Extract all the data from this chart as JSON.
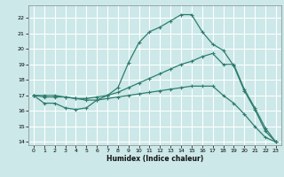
{
  "title": "",
  "xlabel": "Humidex (Indice chaleur)",
  "bg_color": "#cce8e8",
  "grid_color": "#ffffff",
  "line_color": "#2e7d6e",
  "xlim": [
    -0.5,
    23.5
  ],
  "ylim": [
    13.8,
    22.8
  ],
  "xticks": [
    0,
    1,
    2,
    3,
    4,
    5,
    6,
    7,
    8,
    9,
    10,
    11,
    12,
    13,
    14,
    15,
    16,
    17,
    18,
    19,
    20,
    21,
    22,
    23
  ],
  "yticks": [
    14,
    15,
    16,
    17,
    18,
    19,
    20,
    21,
    22
  ],
  "line1_x": [
    0,
    1,
    2,
    3,
    4,
    5,
    6,
    7,
    8,
    9,
    10,
    11,
    12,
    13,
    14,
    15,
    16,
    17,
    18,
    19,
    20,
    21,
    22,
    23
  ],
  "line1_y": [
    17,
    16.5,
    16.5,
    16.2,
    16.1,
    16.2,
    16.7,
    17.0,
    17.5,
    19.1,
    20.4,
    21.1,
    21.4,
    21.8,
    22.2,
    22.2,
    21.1,
    20.3,
    19.9,
    18.9,
    17.3,
    16.1,
    14.7,
    14.0
  ],
  "line2_x": [
    0,
    1,
    2,
    3,
    4,
    5,
    6,
    7,
    8,
    9,
    10,
    11,
    12,
    13,
    14,
    15,
    16,
    17,
    18,
    19,
    20,
    21,
    22,
    23
  ],
  "line2_y": [
    17,
    16.9,
    16.9,
    16.9,
    16.8,
    16.8,
    16.9,
    17.0,
    17.2,
    17.5,
    17.8,
    18.1,
    18.4,
    18.7,
    19.0,
    19.2,
    19.5,
    19.7,
    19.0,
    19.0,
    17.4,
    16.2,
    14.9,
    14.0
  ],
  "line3_x": [
    0,
    1,
    2,
    3,
    4,
    5,
    6,
    7,
    8,
    9,
    10,
    11,
    12,
    13,
    14,
    15,
    16,
    17,
    18,
    19,
    20,
    21,
    22,
    23
  ],
  "line3_y": [
    17,
    17.0,
    17.0,
    16.9,
    16.8,
    16.7,
    16.7,
    16.8,
    16.9,
    17.0,
    17.1,
    17.2,
    17.3,
    17.4,
    17.5,
    17.6,
    17.6,
    17.6,
    17.0,
    16.5,
    15.8,
    15.0,
    14.3,
    14.0
  ]
}
